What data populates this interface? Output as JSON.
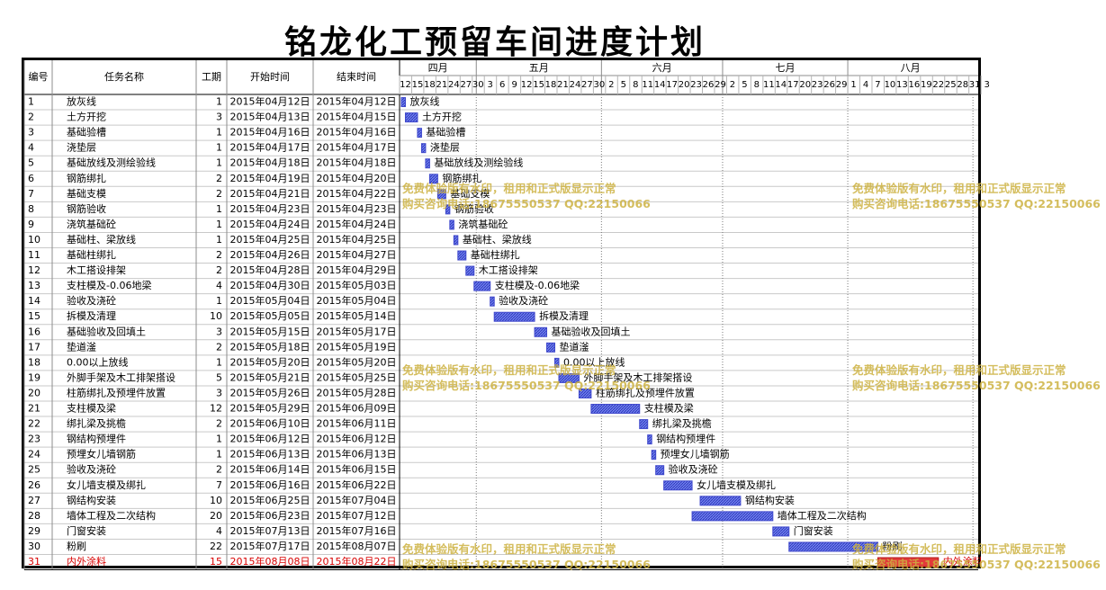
{
  "title": "铭龙化工预留车间进度计划",
  "colors": {
    "bar": "#3f48cc",
    "bar_fill": "#6f7ff0",
    "highlight_bar": "#e23a3a",
    "highlight_text": "#d80000",
    "watermark": "#cdb241"
  },
  "chart_data": {
    "type": "gantt",
    "columns": [
      "编号",
      "任务名称",
      "工期",
      "开始时间",
      "结束时间"
    ],
    "months": [
      "四月",
      "五月",
      "六月",
      "七月",
      "八月"
    ],
    "day_ticks": [
      {
        "m": "四月",
        "d": [
          "12",
          "15",
          "18",
          "21",
          "24",
          "27",
          "30"
        ]
      },
      {
        "m": "五月",
        "d": [
          "3",
          "6",
          "9",
          "12",
          "15",
          "18",
          "21",
          "24",
          "27",
          "30"
        ]
      },
      {
        "m": "六月",
        "d": [
          "2",
          "5",
          "8",
          "11",
          "14",
          "17",
          "20",
          "23",
          "26",
          "29"
        ]
      },
      {
        "m": "七月",
        "d": [
          "2",
          "5",
          "8",
          "11",
          "14",
          "17",
          "20",
          "23",
          "26",
          "29"
        ]
      },
      {
        "m": "八月",
        "d": [
          "1",
          "4",
          "7",
          "10",
          "13",
          "16",
          "19",
          "22",
          "25",
          "28",
          "31",
          "3"
        ]
      }
    ],
    "tasks": [
      {
        "id": "1",
        "name": "放灰线",
        "dur": "1",
        "start": "2015年04月12日",
        "end": "2015年04月12日"
      },
      {
        "id": "2",
        "name": "土方开挖",
        "dur": "3",
        "start": "2015年04月13日",
        "end": "2015年04月15日"
      },
      {
        "id": "3",
        "name": "基础验槽",
        "dur": "1",
        "start": "2015年04月16日",
        "end": "2015年04月16日"
      },
      {
        "id": "4",
        "name": "浇垫层",
        "dur": "1",
        "start": "2015年04月17日",
        "end": "2015年04月17日"
      },
      {
        "id": "5",
        "name": "基础放线及测绘验线",
        "dur": "1",
        "start": "2015年04月18日",
        "end": "2015年04月18日"
      },
      {
        "id": "6",
        "name": "钢筋绑扎",
        "dur": "2",
        "start": "2015年04月19日",
        "end": "2015年04月20日"
      },
      {
        "id": "7",
        "name": "基础支模",
        "dur": "2",
        "start": "2015年04月21日",
        "end": "2015年04月22日"
      },
      {
        "id": "8",
        "name": "钢筋验收",
        "dur": "1",
        "start": "2015年04月23日",
        "end": "2015年04月23日"
      },
      {
        "id": "9",
        "name": "浇筑基础砼",
        "dur": "1",
        "start": "2015年04月24日",
        "end": "2015年04月24日"
      },
      {
        "id": "10",
        "name": "基础柱、梁放线",
        "dur": "1",
        "start": "2015年04月25日",
        "end": "2015年04月25日"
      },
      {
        "id": "11",
        "name": "基础柱绑扎",
        "dur": "2",
        "start": "2015年04月26日",
        "end": "2015年04月27日"
      },
      {
        "id": "12",
        "name": "木工搭设排架",
        "dur": "2",
        "start": "2015年04月28日",
        "end": "2015年04月29日"
      },
      {
        "id": "13",
        "name": "支柱模及-0.06地梁",
        "dur": "4",
        "start": "2015年04月30日",
        "end": "2015年05月03日"
      },
      {
        "id": "14",
        "name": "验收及浇砼",
        "dur": "1",
        "start": "2015年05月04日",
        "end": "2015年05月04日"
      },
      {
        "id": "15",
        "name": "拆模及清理",
        "dur": "10",
        "start": "2015年05月05日",
        "end": "2015年05月14日"
      },
      {
        "id": "16",
        "name": "基础验收及回填土",
        "dur": "3",
        "start": "2015年05月15日",
        "end": "2015年05月17日"
      },
      {
        "id": "17",
        "name": "垫道滏",
        "dur": "2",
        "start": "2015年05月18日",
        "end": "2015年05月19日"
      },
      {
        "id": "18",
        "name": "0.00以上放线",
        "dur": "1",
        "start": "2015年05月20日",
        "end": "2015年05月20日"
      },
      {
        "id": "19",
        "name": "外脚手架及木工排架搭设",
        "dur": "5",
        "start": "2015年05月21日",
        "end": "2015年05月25日"
      },
      {
        "id": "20",
        "name": "柱筋绑扎及预埋件放置",
        "dur": "3",
        "start": "2015年05月26日",
        "end": "2015年05月28日"
      },
      {
        "id": "21",
        "name": "支柱模及梁",
        "dur": "12",
        "start": "2015年05月29日",
        "end": "2015年06月09日"
      },
      {
        "id": "22",
        "name": "绑扎梁及挑檐",
        "dur": "2",
        "start": "2015年06月10日",
        "end": "2015年06月11日"
      },
      {
        "id": "23",
        "name": "钢结构预埋件",
        "dur": "1",
        "start": "2015年06月12日",
        "end": "2015年06月12日"
      },
      {
        "id": "24",
        "name": "预埋女儿墙钢筋",
        "dur": "1",
        "start": "2015年06月13日",
        "end": "2015年06月13日"
      },
      {
        "id": "25",
        "name": "验收及浇砼",
        "dur": "2",
        "start": "2015年06月14日",
        "end": "2015年06月15日"
      },
      {
        "id": "26",
        "name": "女儿墙支模及绑扎",
        "dur": "7",
        "start": "2015年06月16日",
        "end": "2015年06月22日"
      },
      {
        "id": "27",
        "name": "钢结构安装",
        "dur": "10",
        "start": "2015年06月25日",
        "end": "2015年07月04日"
      },
      {
        "id": "28",
        "name": "墙体工程及二次结构",
        "dur": "20",
        "start": "2015年06月23日",
        "end": "2015年07月12日"
      },
      {
        "id": "29",
        "name": "门窗安装",
        "dur": "4",
        "start": "2015年07月13日",
        "end": "2015年07月16日"
      },
      {
        "id": "30",
        "name": "粉刷",
        "dur": "22",
        "start": "2015年07月17日",
        "end": "2015年08月07日"
      },
      {
        "id": "31",
        "name": "内外涂料",
        "dur": "15",
        "start": "2015年08月08日",
        "end": "2015年08月22日",
        "highlight": true
      }
    ]
  },
  "watermarks": [
    {
      "line1": "免费体验版有水印，租用和正式版显示正常",
      "line2": "购买咨询电话:18675550537 QQ:22150066"
    },
    {
      "line1": "免费体验版有水印，租用和正式版显示正常",
      "line2": "购买咨询电话:18675550537 QQ:22150066"
    },
    {
      "line1": "免费体验版有水印，租用和正式版显示正常",
      "line2": "购买咨询电话:18675550537 QQ:22150066"
    },
    {
      "line1": "免费体验版有水印，租用和正式版显示正常",
      "line2": "购买咨询电话:18675550537 QQ:22150066"
    },
    {
      "line1": "免费体验版有水印，租用和正式版显示正常",
      "line2": "购买咨询电话:18675550537 QQ:22150066"
    },
    {
      "line1": "免费体验版有水印，租用和正式版显示正常",
      "line2": "购买咨询电话:18675550537 QQ:22150066"
    }
  ]
}
